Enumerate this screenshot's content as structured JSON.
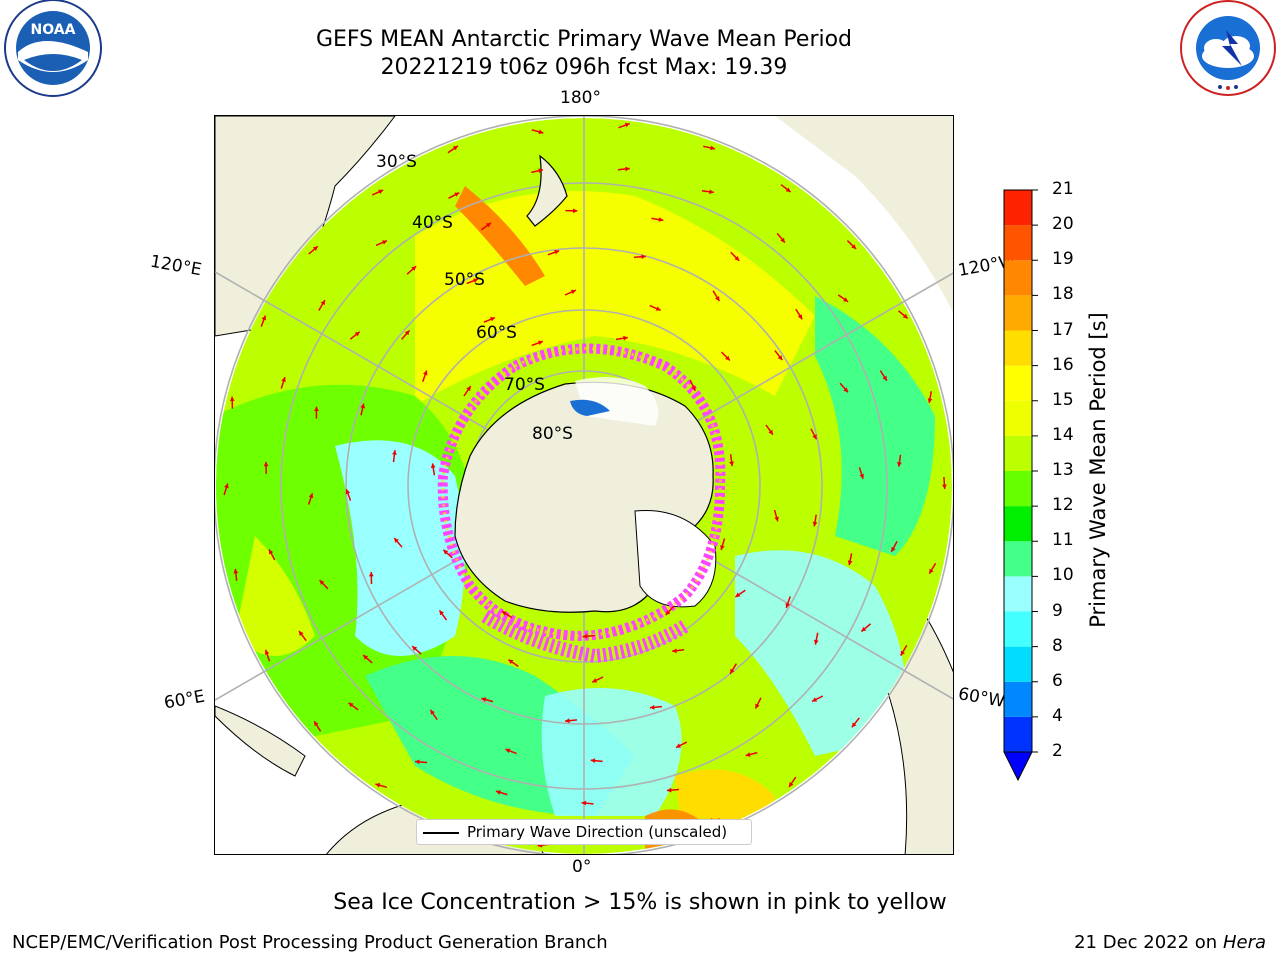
{
  "title": {
    "line1": "GEFS MEAN Antarctic Primary Wave Mean Period",
    "line2": "20221219 t06z 096h fcst   Max: 19.39"
  },
  "logos": {
    "left": {
      "icon": "noaa-logo",
      "text": "NOAA"
    },
    "right": {
      "icon": "nws-logo",
      "text": "NATIONAL WEATHER SERVICE"
    }
  },
  "map": {
    "projection": "south-polar-stereographic",
    "longitude_labels": {
      "top": "180°",
      "upper_left": "120°E",
      "upper_right": "120°W",
      "lower_left": "60°E",
      "lower_right": "60°W",
      "bottom": "0°"
    },
    "latitude_labels": [
      "30°S",
      "40°S",
      "50°S",
      "60°S",
      "70°S",
      "80°S"
    ],
    "legend": {
      "label": "Primary Wave Direction (unscaled)"
    },
    "colors": {
      "land": "#efefdc",
      "coastline": "#000000",
      "gridline": "#b0b0b0",
      "arrow": "#ee0000",
      "sea_ice_low": "#ff44ff",
      "sea_ice_high": "#ffffff"
    }
  },
  "colorbar": {
    "label": "Primary Wave Mean Period [s]",
    "ticks": [
      "2",
      "4",
      "6",
      "8",
      "9",
      "10",
      "11",
      "12",
      "13",
      "14",
      "15",
      "16",
      "17",
      "18",
      "19",
      "20",
      "21"
    ],
    "colors": [
      "#0033ff",
      "#0088ff",
      "#00ddff",
      "#44ffff",
      "#99ffff",
      "#44ff88",
      "#00ee00",
      "#66ff00",
      "#bbff00",
      "#eeff00",
      "#ffff00",
      "#ffdd00",
      "#ffaa00",
      "#ff8800",
      "#ff5500",
      "#ff2200"
    ],
    "extend_color": "#0000ff"
  },
  "note": "Sea Ice Concentration > 15% is shown in pink to yellow",
  "footer": {
    "left": "NCEP/EMC/Verification Post Processing Product Generation Branch",
    "right_date": "21 Dec 2022 on",
    "right_host": "Hera"
  }
}
